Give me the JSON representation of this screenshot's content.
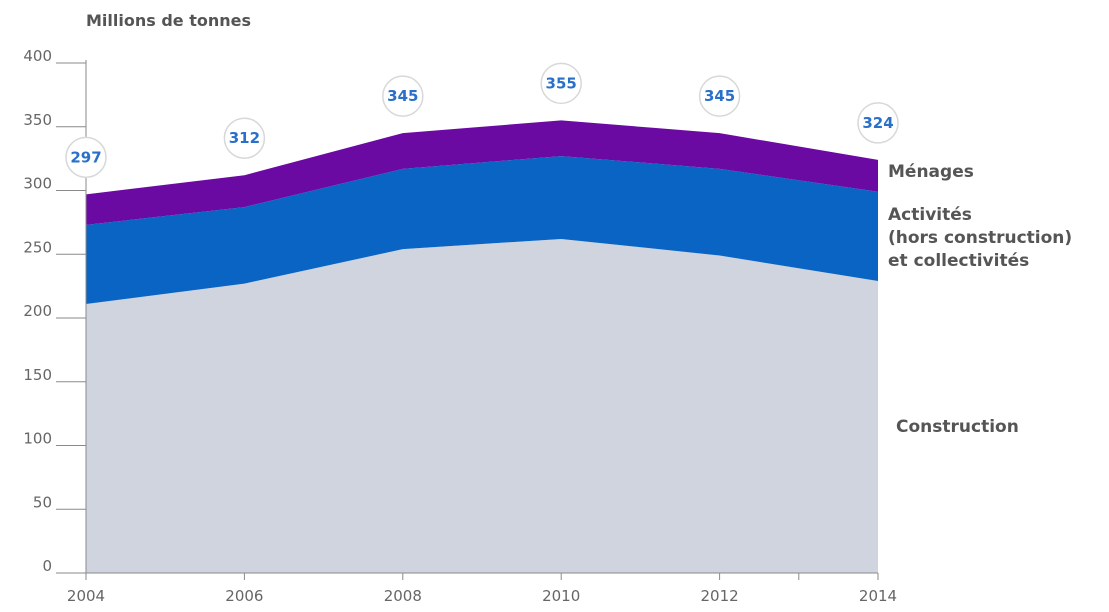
{
  "chart_data": {
    "type": "area",
    "stacked": true,
    "ylabel": "Millions de tonnes",
    "x": [
      2004,
      2006,
      2008,
      2010,
      2012,
      2014
    ],
    "x_ticks": [
      "2004",
      "2006",
      "2008",
      "2010",
      "2012",
      "2014"
    ],
    "y_ticks": [
      "0",
      "50",
      "100",
      "150",
      "200",
      "250",
      "300",
      "350",
      "400"
    ],
    "ylim": [
      0,
      400
    ],
    "series": [
      {
        "name": "Construction",
        "values": [
          211,
          227,
          254,
          262,
          249,
          229
        ],
        "color": "#cfd4de"
      },
      {
        "name_lines": [
          "Activités",
          "(hors construction)",
          "et collectivités"
        ],
        "values": [
          62,
          60,
          63,
          65,
          68,
          70
        ],
        "color": "#0a64c4"
      },
      {
        "name": "Ménages",
        "values": [
          24,
          25,
          28,
          28,
          28,
          25
        ],
        "color": "#6b0aa2"
      }
    ],
    "totals": [
      "297",
      "312",
      "345",
      "355",
      "345",
      "324"
    ],
    "grid": false,
    "legend": "right"
  }
}
